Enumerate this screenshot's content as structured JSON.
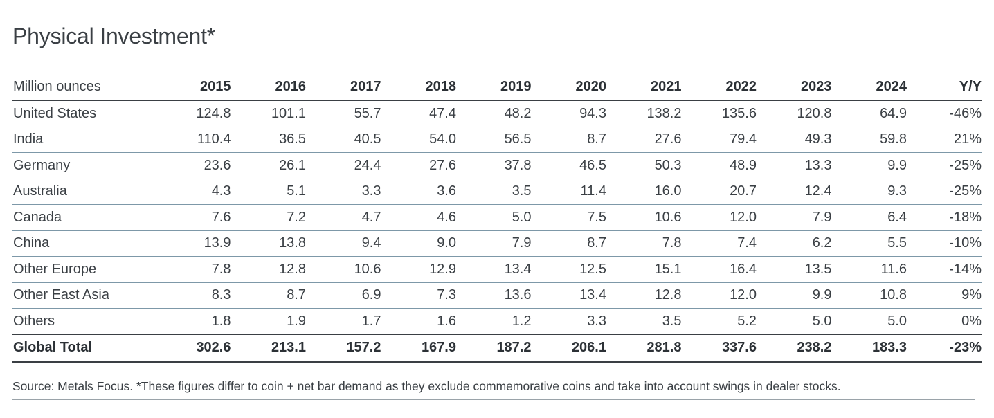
{
  "title": "Physical Investment*",
  "table": {
    "unit_label": "Million ounces",
    "years": [
      "2015",
      "2016",
      "2017",
      "2018",
      "2019",
      "2020",
      "2021",
      "2022",
      "2023",
      "2024"
    ],
    "change_label": "Y/Y",
    "rows": [
      {
        "label": "United States",
        "values": [
          "124.8",
          "101.1",
          "55.7",
          "47.4",
          "48.2",
          "94.3",
          "138.2",
          "135.6",
          "120.8",
          "64.9"
        ],
        "change": "-46%"
      },
      {
        "label": "India",
        "values": [
          "110.4",
          "36.5",
          "40.5",
          "54.0",
          "56.5",
          "8.7",
          "27.6",
          "79.4",
          "49.3",
          "59.8"
        ],
        "change": "21%"
      },
      {
        "label": "Germany",
        "values": [
          "23.6",
          "26.1",
          "24.4",
          "27.6",
          "37.8",
          "46.5",
          "50.3",
          "48.9",
          "13.3",
          "9.9"
        ],
        "change": "-25%"
      },
      {
        "label": "Australia",
        "values": [
          "4.3",
          "5.1",
          "3.3",
          "3.6",
          "3.5",
          "11.4",
          "16.0",
          "20.7",
          "12.4",
          "9.3"
        ],
        "change": "-25%"
      },
      {
        "label": "Canada",
        "values": [
          "7.6",
          "7.2",
          "4.7",
          "4.6",
          "5.0",
          "7.5",
          "10.6",
          "12.0",
          "7.9",
          "6.4"
        ],
        "change": "-18%"
      },
      {
        "label": "China",
        "values": [
          "13.9",
          "13.8",
          "9.4",
          "9.0",
          "7.9",
          "8.7",
          "7.8",
          "7.4",
          "6.2",
          "5.5"
        ],
        "change": "-10%"
      },
      {
        "label": "Other Europe",
        "values": [
          "7.8",
          "12.8",
          "10.6",
          "12.9",
          "13.4",
          "12.5",
          "15.1",
          "16.4",
          "13.5",
          "11.6"
        ],
        "change": "-14%"
      },
      {
        "label": "Other East Asia",
        "values": [
          "8.3",
          "8.7",
          "6.9",
          "7.3",
          "13.6",
          "13.4",
          "12.8",
          "12.0",
          "9.9",
          "10.8"
        ],
        "change": "9%"
      },
      {
        "label": "Others",
        "values": [
          "1.8",
          "1.9",
          "1.7",
          "1.6",
          "1.2",
          "3.3",
          "3.5",
          "5.2",
          "5.0",
          "5.0"
        ],
        "change": "0%"
      }
    ],
    "total": {
      "label": "Global Total",
      "values": [
        "302.6",
        "213.1",
        "157.2",
        "167.9",
        "187.2",
        "206.1",
        "281.8",
        "337.6",
        "238.2",
        "183.3"
      ],
      "change": "-23%"
    }
  },
  "source_note": "Source: Metals Focus. *These figures differ to coin + net bar demand as they exclude commemorative coins and take into account swings in dealer stocks."
}
